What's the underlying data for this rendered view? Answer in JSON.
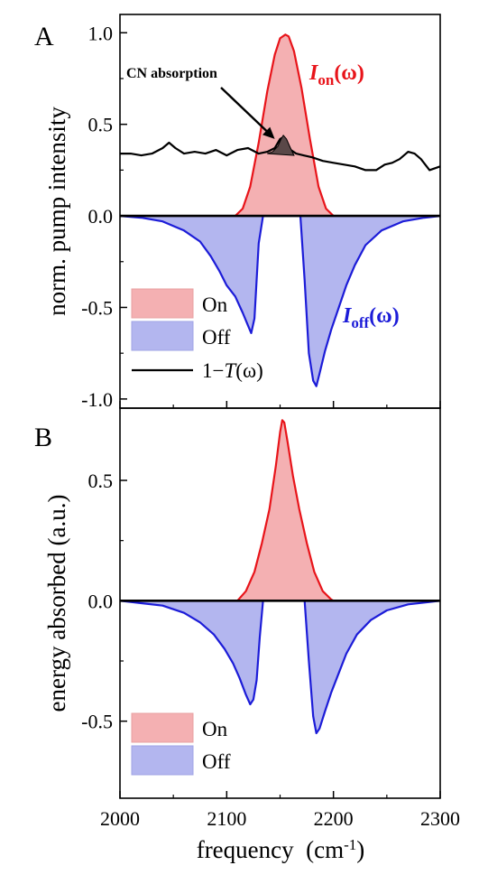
{
  "chart_data": [
    {
      "panel": "A",
      "type": "area",
      "ylabel": "norm. pump intensity",
      "xlim": [
        2000,
        2300
      ],
      "ylim": [
        -1.05,
        1.1
      ],
      "xticks": [
        2000,
        2100,
        2200,
        2300
      ],
      "xtick_labels": [
        "2000",
        "2100",
        "2200",
        "2300"
      ],
      "yticks": [
        1.0,
        0.5,
        0.0,
        -0.5,
        -1.0
      ],
      "ytick_labels": [
        "1.0",
        "0.5",
        "0.0",
        "-0.5",
        "-1.0"
      ],
      "series": [
        {
          "name": "On",
          "label_main": "I",
          "label_sub": "on",
          "label_tail": "(ω)",
          "color": "#e8141a",
          "fill": "#f4b0b2",
          "x": [
            2108,
            2115,
            2122,
            2130,
            2138,
            2145,
            2150,
            2155,
            2158,
            2163,
            2170,
            2178,
            2186,
            2193,
            2200
          ],
          "y": [
            0,
            0.04,
            0.16,
            0.4,
            0.68,
            0.88,
            0.97,
            0.99,
            0.98,
            0.9,
            0.7,
            0.42,
            0.16,
            0.04,
            0
          ]
        },
        {
          "name": "Off",
          "label_main": "I",
          "label_sub": "off",
          "label_tail": "(ω)",
          "color": "#1c1cd8",
          "fill": "#b3b6ef",
          "x": [
            2000,
            2020,
            2040,
            2060,
            2075,
            2085,
            2093,
            2100,
            2108,
            2115,
            2120,
            2123,
            2126,
            2130,
            2134,
            2169,
            2173,
            2177,
            2181,
            2184,
            2187,
            2192,
            2198,
            2205,
            2212,
            2220,
            2230,
            2245,
            2265,
            2285,
            2300
          ],
          "y": [
            0,
            -0.01,
            -0.03,
            -0.08,
            -0.14,
            -0.22,
            -0.3,
            -0.38,
            -0.44,
            -0.53,
            -0.6,
            -0.64,
            -0.56,
            -0.15,
            0,
            0,
            -0.35,
            -0.75,
            -0.9,
            -0.93,
            -0.86,
            -0.74,
            -0.62,
            -0.5,
            -0.38,
            -0.27,
            -0.16,
            -0.08,
            -0.03,
            -0.01,
            0
          ]
        },
        {
          "name": "1−T(ω)",
          "label_main": "1−",
          "label_italic": "T",
          "label_tail": "(ω)",
          "color": "#000000",
          "x": [
            2000,
            2010,
            2020,
            2030,
            2040,
            2046,
            2052,
            2060,
            2070,
            2080,
            2090,
            2100,
            2110,
            2120,
            2130,
            2138,
            2145,
            2150,
            2153,
            2156,
            2160,
            2165,
            2172,
            2180,
            2190,
            2200,
            2210,
            2220,
            2230,
            2240,
            2248,
            2255,
            2262,
            2270,
            2276,
            2282,
            2290,
            2300
          ],
          "y": [
            0.34,
            0.34,
            0.33,
            0.34,
            0.37,
            0.4,
            0.37,
            0.34,
            0.35,
            0.34,
            0.36,
            0.33,
            0.36,
            0.37,
            0.34,
            0.35,
            0.37,
            0.42,
            0.43,
            0.41,
            0.36,
            0.34,
            0.33,
            0.32,
            0.3,
            0.29,
            0.28,
            0.27,
            0.25,
            0.25,
            0.28,
            0.29,
            0.31,
            0.35,
            0.34,
            0.31,
            0.25,
            0.27
          ]
        }
      ],
      "cn_peak": {
        "x": [
          2138,
          2143,
          2148,
          2151,
          2153,
          2156,
          2159,
          2163
        ],
        "y": [
          0.34,
          0.35,
          0.38,
          0.42,
          0.44,
          0.42,
          0.38,
          0.33
        ],
        "fill": "#5a4848"
      },
      "annotation": {
        "text": "CN absorption",
        "arrow_tip": [
          2145,
          0.42
        ]
      },
      "legend": [
        {
          "label": "On",
          "kind": "box",
          "fill": "#f4b0b2",
          "stroke": "#e8a0a2"
        },
        {
          "label": "Off",
          "kind": "box",
          "fill": "#b3b6ef",
          "stroke": "#a0a4e6"
        },
        {
          "label_main": "1−",
          "label_italic": "T",
          "label_tail": "(ω)",
          "kind": "line",
          "color": "#000000"
        }
      ],
      "legend_position": "bottom-left"
    },
    {
      "panel": "B",
      "type": "area",
      "ylabel": "energy absorbed (a.u.)",
      "xlabel": "frequency",
      "xlabel_unit": "(cm",
      "xlabel_sup": "-1",
      "xlabel_close": ")",
      "xlim": [
        2000,
        2300
      ],
      "ylim": [
        -0.82,
        0.8
      ],
      "xticks": [
        2000,
        2100,
        2200,
        2300
      ],
      "xtick_labels": [
        "2000",
        "2100",
        "2200",
        "2300"
      ],
      "yticks": [
        0.5,
        0.0,
        -0.5
      ],
      "ytick_labels": [
        "0.5",
        "0.0",
        "-0.5"
      ],
      "series": [
        {
          "name": "On",
          "color": "#e8141a",
          "fill": "#f4b0b2",
          "x": [
            2110,
            2118,
            2126,
            2133,
            2140,
            2146,
            2150,
            2152,
            2154,
            2157,
            2162,
            2168,
            2175,
            2182,
            2190,
            2198,
            2200
          ],
          "y": [
            0,
            0.04,
            0.12,
            0.24,
            0.38,
            0.56,
            0.7,
            0.75,
            0.74,
            0.66,
            0.52,
            0.38,
            0.24,
            0.12,
            0.04,
            0.005,
            0
          ]
        },
        {
          "name": "Off",
          "color": "#1c1cd8",
          "fill": "#b3b6ef",
          "x": [
            2000,
            2020,
            2040,
            2060,
            2075,
            2088,
            2098,
            2106,
            2112,
            2118,
            2122,
            2125,
            2128,
            2131,
            2134,
            2173,
            2177,
            2181,
            2184,
            2187,
            2192,
            2198,
            2205,
            2212,
            2222,
            2235,
            2250,
            2270,
            2290,
            2300
          ],
          "y": [
            0,
            -0.01,
            -0.02,
            -0.05,
            -0.09,
            -0.14,
            -0.2,
            -0.26,
            -0.32,
            -0.39,
            -0.43,
            -0.41,
            -0.33,
            -0.15,
            0,
            0,
            -0.25,
            -0.48,
            -0.55,
            -0.53,
            -0.46,
            -0.38,
            -0.3,
            -0.22,
            -0.14,
            -0.08,
            -0.04,
            -0.015,
            -0.005,
            0
          ]
        }
      ],
      "legend": [
        {
          "label": "On",
          "kind": "box",
          "fill": "#f4b0b2",
          "stroke": "#e8a0a2"
        },
        {
          "label": "Off",
          "kind": "box",
          "fill": "#b3b6ef",
          "stroke": "#a0a4e6"
        }
      ],
      "legend_position": "bottom-left"
    }
  ]
}
